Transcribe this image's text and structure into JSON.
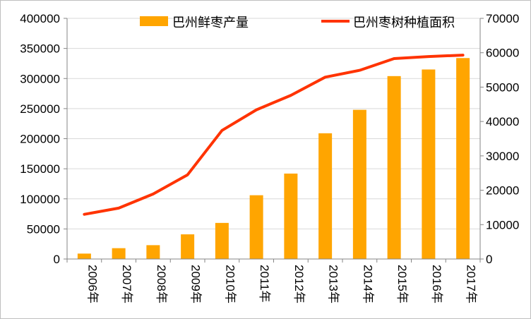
{
  "chart_data": {
    "type": "bar",
    "categories": [
      "2006年",
      "2007年",
      "2008年",
      "2009年",
      "2010年",
      "2011年",
      "2012年",
      "2013年",
      "2014年",
      "2015年",
      "2016年",
      "2017年"
    ],
    "series": [
      {
        "name": "巴州鲜枣产量",
        "type": "bar",
        "axis": "left",
        "color": "#FFA500",
        "values": [
          9000,
          18000,
          23000,
          41000,
          60000,
          106000,
          142000,
          209000,
          248000,
          304000,
          315000,
          334000
        ]
      },
      {
        "name": "巴州枣树种植面积",
        "type": "line",
        "axis": "right",
        "color": "#FF3300",
        "values": [
          13000,
          14800,
          18900,
          24500,
          37400,
          43400,
          47600,
          52900,
          54900,
          58300,
          58900,
          59300
        ]
      }
    ],
    "y_left": {
      "lim": [
        0,
        400000
      ],
      "ticks": [
        "0",
        "50000",
        "100000",
        "150000",
        "200000",
        "250000",
        "300000",
        "350000",
        "400000"
      ]
    },
    "y_right": {
      "lim": [
        0,
        70000
      ],
      "ticks": [
        "0",
        "10000",
        "20000",
        "30000",
        "40000",
        "50000",
        "60000",
        "70000"
      ]
    },
    "legend_position": "top",
    "grid": "horizontal"
  }
}
